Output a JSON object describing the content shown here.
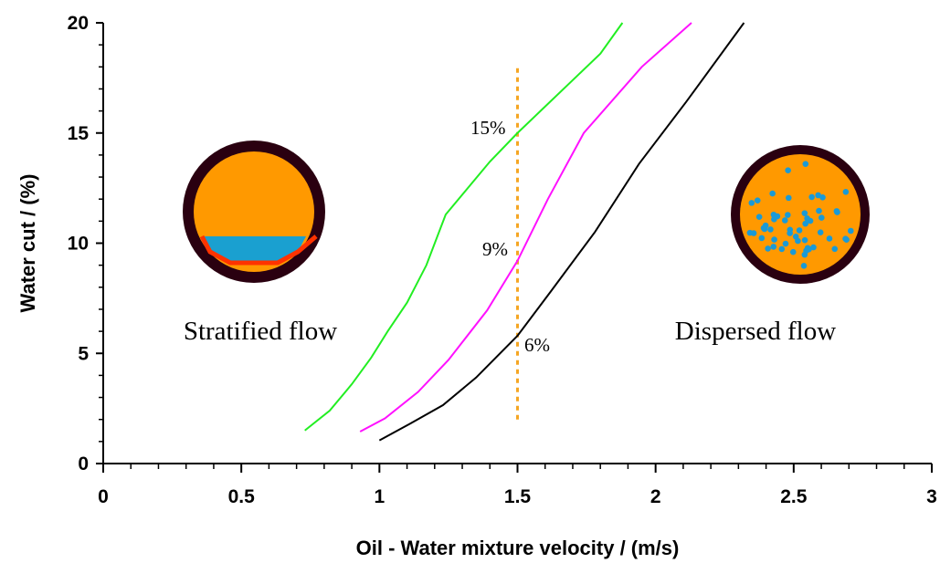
{
  "chart_data": {
    "type": "line",
    "x_label": "Oil - Water mixture velocity / (m/s)",
    "y_label": "Water cut / (%)",
    "xlim": [
      0,
      3
    ],
    "ylim": [
      0,
      20
    ],
    "xticks": [
      0,
      0.5,
      1,
      1.5,
      2,
      2.5,
      3
    ],
    "yticks": [
      0,
      5,
      10,
      15,
      20
    ],
    "minor_ticks": true,
    "series": [
      {
        "color": "#22ee22",
        "x": [
          0.73,
          0.82,
          0.9,
          0.97,
          1.03,
          1.1,
          1.17,
          1.24,
          1.32,
          1.4,
          1.5,
          1.6,
          1.7,
          1.8,
          1.88
        ],
        "values": [
          1.5,
          2.4,
          3.6,
          4.8,
          6,
          7.3,
          9,
          11.3,
          12.5,
          13.7,
          15,
          16.2,
          17.4,
          18.6,
          20
        ]
      },
      {
        "color": "#ff11ff",
        "x": [
          0.93,
          1.02,
          1.14,
          1.25,
          1.39,
          1.5,
          1.61,
          1.74,
          1.95,
          2.13
        ],
        "values": [
          1.45,
          2.05,
          3.25,
          4.7,
          6.95,
          9.2,
          12,
          15,
          18,
          20
        ]
      },
      {
        "color": "#000000",
        "x": [
          1.0,
          1.11,
          1.23,
          1.35,
          1.5,
          1.62,
          1.78,
          1.94,
          2.11,
          2.32
        ],
        "values": [
          1.05,
          1.8,
          2.65,
          3.9,
          5.8,
          7.8,
          10.5,
          13.6,
          16.4,
          20
        ]
      }
    ],
    "vline": {
      "x": 1.5,
      "y": [
        2,
        18
      ],
      "color": "#f5a623"
    },
    "annotations": [
      "15%",
      "9%",
      "6%",
      "Stratified flow",
      "Dispersed flow"
    ]
  }
}
